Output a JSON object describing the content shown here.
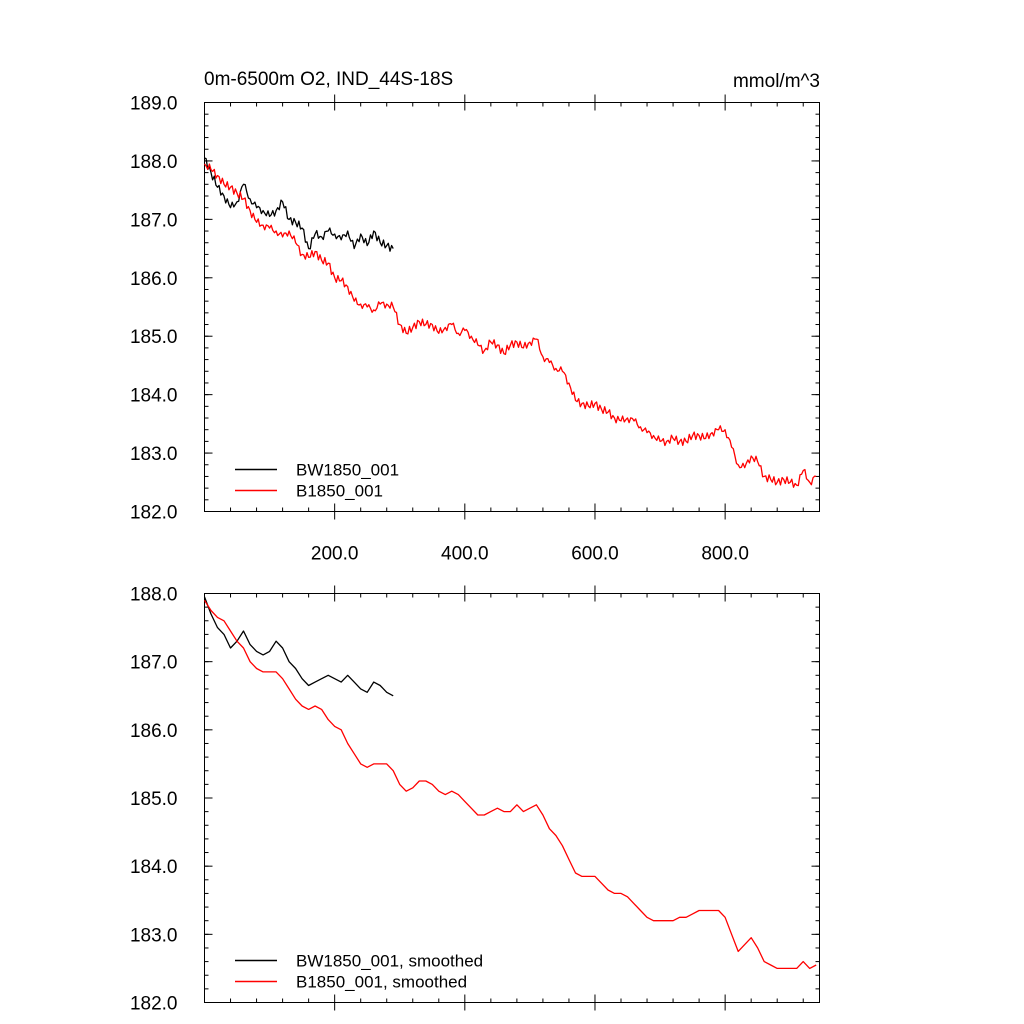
{
  "colors": {
    "BW1850_001": "#000000",
    "B1850_001": "#ff0000"
  },
  "chart_data": [
    {
      "type": "line",
      "title": "0m-6500m O2, IND_44S-18S",
      "units": "mmol/m^3",
      "xlim": [
        0,
        945
      ],
      "ylim": [
        182.0,
        189.0
      ],
      "xticks": [
        200,
        400,
        600,
        800
      ],
      "xtick_labels": [
        "200.0",
        "400.0",
        "600.0",
        "800.0"
      ],
      "yticks": [
        182,
        183,
        184,
        185,
        186,
        187,
        188,
        189
      ],
      "ytick_labels": [
        "182.0",
        "183.0",
        "184.0",
        "185.0",
        "186.0",
        "187.0",
        "188.0",
        "189.0"
      ],
      "grid": false,
      "legend_position": "bottom-left",
      "series": [
        {
          "name": "BW1850_001",
          "x": [
            0,
            10,
            20,
            30,
            40,
            50,
            60,
            70,
            80,
            90,
            100,
            110,
            120,
            130,
            140,
            150,
            160,
            170,
            180,
            190,
            200,
            210,
            220,
            230,
            240,
            250,
            260,
            270,
            280,
            290
          ],
          "y": [
            188.05,
            187.8,
            187.55,
            187.4,
            187.2,
            187.3,
            187.6,
            187.35,
            187.2,
            187.15,
            187.05,
            187.15,
            187.3,
            187.0,
            186.95,
            186.85,
            186.5,
            186.75,
            186.7,
            186.8,
            186.75,
            186.65,
            186.8,
            186.5,
            186.75,
            186.55,
            186.8,
            186.6,
            186.55,
            186.5
          ]
        },
        {
          "name": "B1850_001",
          "x": [
            0,
            10,
            20,
            30,
            40,
            50,
            60,
            70,
            80,
            90,
            100,
            110,
            120,
            130,
            140,
            150,
            160,
            170,
            180,
            190,
            200,
            210,
            220,
            230,
            240,
            250,
            260,
            270,
            280,
            290,
            300,
            310,
            320,
            330,
            340,
            350,
            360,
            370,
            380,
            390,
            400,
            410,
            420,
            430,
            440,
            450,
            460,
            470,
            480,
            490,
            500,
            510,
            520,
            530,
            540,
            550,
            560,
            570,
            580,
            590,
            600,
            610,
            620,
            630,
            640,
            650,
            660,
            670,
            680,
            690,
            700,
            710,
            720,
            730,
            740,
            750,
            760,
            770,
            780,
            790,
            800,
            810,
            820,
            830,
            840,
            850,
            860,
            870,
            880,
            890,
            900,
            910,
            920,
            930,
            940
          ],
          "y": [
            187.95,
            187.85,
            187.75,
            187.6,
            187.55,
            187.45,
            187.35,
            187.15,
            186.95,
            186.9,
            186.85,
            186.8,
            186.7,
            186.8,
            186.6,
            186.4,
            186.35,
            186.45,
            186.3,
            186.25,
            186.0,
            185.95,
            185.85,
            185.6,
            185.55,
            185.5,
            185.45,
            185.55,
            185.55,
            185.5,
            185.2,
            185.05,
            185.15,
            185.25,
            185.2,
            185.2,
            185.05,
            185.15,
            185.2,
            185.05,
            185.1,
            185.0,
            184.85,
            184.75,
            184.9,
            184.85,
            184.7,
            184.85,
            184.9,
            184.8,
            184.9,
            184.95,
            184.65,
            184.55,
            184.45,
            184.4,
            184.2,
            183.9,
            183.85,
            183.8,
            183.85,
            183.75,
            183.7,
            183.6,
            183.55,
            183.6,
            183.55,
            183.45,
            183.35,
            183.3,
            183.2,
            183.2,
            183.25,
            183.2,
            183.2,
            183.3,
            183.3,
            183.25,
            183.35,
            183.4,
            183.4,
            183.1,
            182.8,
            182.75,
            182.95,
            182.85,
            182.6,
            182.55,
            182.5,
            182.55,
            182.5,
            182.45,
            182.7,
            182.5,
            182.6
          ]
        }
      ]
    },
    {
      "type": "line",
      "title": "",
      "xlim": [
        0,
        945
      ],
      "ylim": [
        182.0,
        188.0
      ],
      "xticks": [
        200,
        400,
        600,
        800
      ],
      "xtick_labels": [],
      "yticks": [
        182,
        183,
        184,
        185,
        186,
        187,
        188
      ],
      "ytick_labels": [
        "182.0",
        "183.0",
        "184.0",
        "185.0",
        "186.0",
        "187.0",
        "188.0"
      ],
      "grid": false,
      "legend_position": "bottom-left",
      "series": [
        {
          "name": "BW1850_001, smoothed",
          "x": [
            0,
            10,
            20,
            30,
            40,
            50,
            60,
            70,
            80,
            90,
            100,
            110,
            120,
            130,
            140,
            150,
            160,
            170,
            180,
            190,
            200,
            210,
            220,
            230,
            240,
            250,
            260,
            270,
            280,
            290
          ],
          "y": [
            187.95,
            187.7,
            187.5,
            187.4,
            187.2,
            187.3,
            187.45,
            187.25,
            187.15,
            187.1,
            187.15,
            187.3,
            187.2,
            187.0,
            186.9,
            186.75,
            186.65,
            186.7,
            186.75,
            186.8,
            186.75,
            186.7,
            186.8,
            186.7,
            186.6,
            186.55,
            186.7,
            186.65,
            186.55,
            186.5
          ]
        },
        {
          "name": "B1850_001, smoothed",
          "x": [
            0,
            10,
            20,
            30,
            40,
            50,
            60,
            70,
            80,
            90,
            100,
            110,
            120,
            130,
            140,
            150,
            160,
            170,
            180,
            190,
            200,
            210,
            220,
            230,
            240,
            250,
            260,
            270,
            280,
            290,
            300,
            310,
            320,
            330,
            340,
            350,
            360,
            370,
            380,
            390,
            400,
            410,
            420,
            430,
            440,
            450,
            460,
            470,
            480,
            490,
            500,
            510,
            520,
            530,
            540,
            550,
            560,
            570,
            580,
            590,
            600,
            610,
            620,
            630,
            640,
            650,
            660,
            670,
            680,
            690,
            700,
            710,
            720,
            730,
            740,
            750,
            760,
            770,
            780,
            790,
            800,
            810,
            820,
            830,
            840,
            850,
            860,
            870,
            880,
            890,
            900,
            910,
            920,
            930,
            940
          ],
          "y": [
            187.9,
            187.75,
            187.65,
            187.6,
            187.45,
            187.3,
            187.2,
            187.0,
            186.9,
            186.85,
            186.85,
            186.85,
            186.75,
            186.6,
            186.45,
            186.35,
            186.3,
            186.35,
            186.3,
            186.15,
            186.05,
            186.0,
            185.8,
            185.65,
            185.5,
            185.45,
            185.5,
            185.5,
            185.5,
            185.4,
            185.2,
            185.1,
            185.15,
            185.25,
            185.25,
            185.2,
            185.1,
            185.05,
            185.1,
            185.05,
            184.95,
            184.85,
            184.75,
            184.75,
            184.8,
            184.85,
            184.8,
            184.8,
            184.9,
            184.8,
            184.85,
            184.9,
            184.75,
            184.55,
            184.45,
            184.3,
            184.1,
            183.9,
            183.85,
            183.85,
            183.85,
            183.75,
            183.65,
            183.6,
            183.6,
            183.55,
            183.45,
            183.35,
            183.25,
            183.2,
            183.2,
            183.2,
            183.2,
            183.25,
            183.25,
            183.3,
            183.35,
            183.35,
            183.35,
            183.35,
            183.25,
            183.0,
            182.75,
            182.85,
            182.95,
            182.8,
            182.6,
            182.55,
            182.5,
            182.5,
            182.5,
            182.5,
            182.6,
            182.5,
            182.55
          ]
        }
      ]
    }
  ]
}
